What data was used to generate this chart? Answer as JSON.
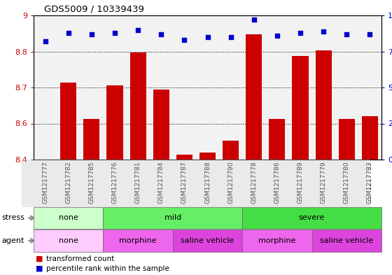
{
  "title": "GDS5009 / 10339439",
  "samples": [
    "GSM1217777",
    "GSM1217782",
    "GSM1217785",
    "GSM1217776",
    "GSM1217781",
    "GSM1217784",
    "GSM1217787",
    "GSM1217788",
    "GSM1217790",
    "GSM1217778",
    "GSM1217786",
    "GSM1217789",
    "GSM1217779",
    "GSM1217780",
    "GSM1217783"
  ],
  "transformed_count": [
    8.401,
    8.72,
    8.57,
    8.71,
    8.845,
    8.69,
    8.42,
    8.43,
    8.48,
    8.92,
    8.57,
    8.83,
    8.855,
    8.57,
    8.58
  ],
  "percentile_rank": [
    82,
    88,
    87,
    88,
    90,
    87,
    83,
    85,
    85,
    97,
    86,
    88,
    89,
    87,
    87
  ],
  "ylim_left": [
    8.4,
    9.0
  ],
  "ylim_right": [
    0,
    100
  ],
  "yticks_left": [
    8.4,
    8.55,
    8.7,
    8.85,
    9.0
  ],
  "yticks_right": [
    0,
    25,
    50,
    75,
    100
  ],
  "bar_color": "#cc0000",
  "dot_color": "#0000cc",
  "stress_groups": [
    {
      "label": "none",
      "start": 0,
      "end": 3,
      "color": "#ccffcc"
    },
    {
      "label": "mild",
      "start": 3,
      "end": 9,
      "color": "#66ee66"
    },
    {
      "label": "severe",
      "start": 9,
      "end": 15,
      "color": "#44dd44"
    }
  ],
  "agent_groups": [
    {
      "label": "none",
      "start": 0,
      "end": 3,
      "color": "#ffccff"
    },
    {
      "label": "morphine",
      "start": 3,
      "end": 6,
      "color": "#ee66ee"
    },
    {
      "label": "saline vehicle",
      "start": 6,
      "end": 9,
      "color": "#dd44dd"
    },
    {
      "label": "morphine",
      "start": 9,
      "end": 12,
      "color": "#ee66ee"
    },
    {
      "label": "saline vehicle",
      "start": 12,
      "end": 15,
      "color": "#dd44dd"
    }
  ],
  "legend_bar_label": "transformed count",
  "legend_dot_label": "percentile rank within the sample",
  "bar_color_legend": "#cc0000",
  "dot_color_legend": "#0000cc"
}
